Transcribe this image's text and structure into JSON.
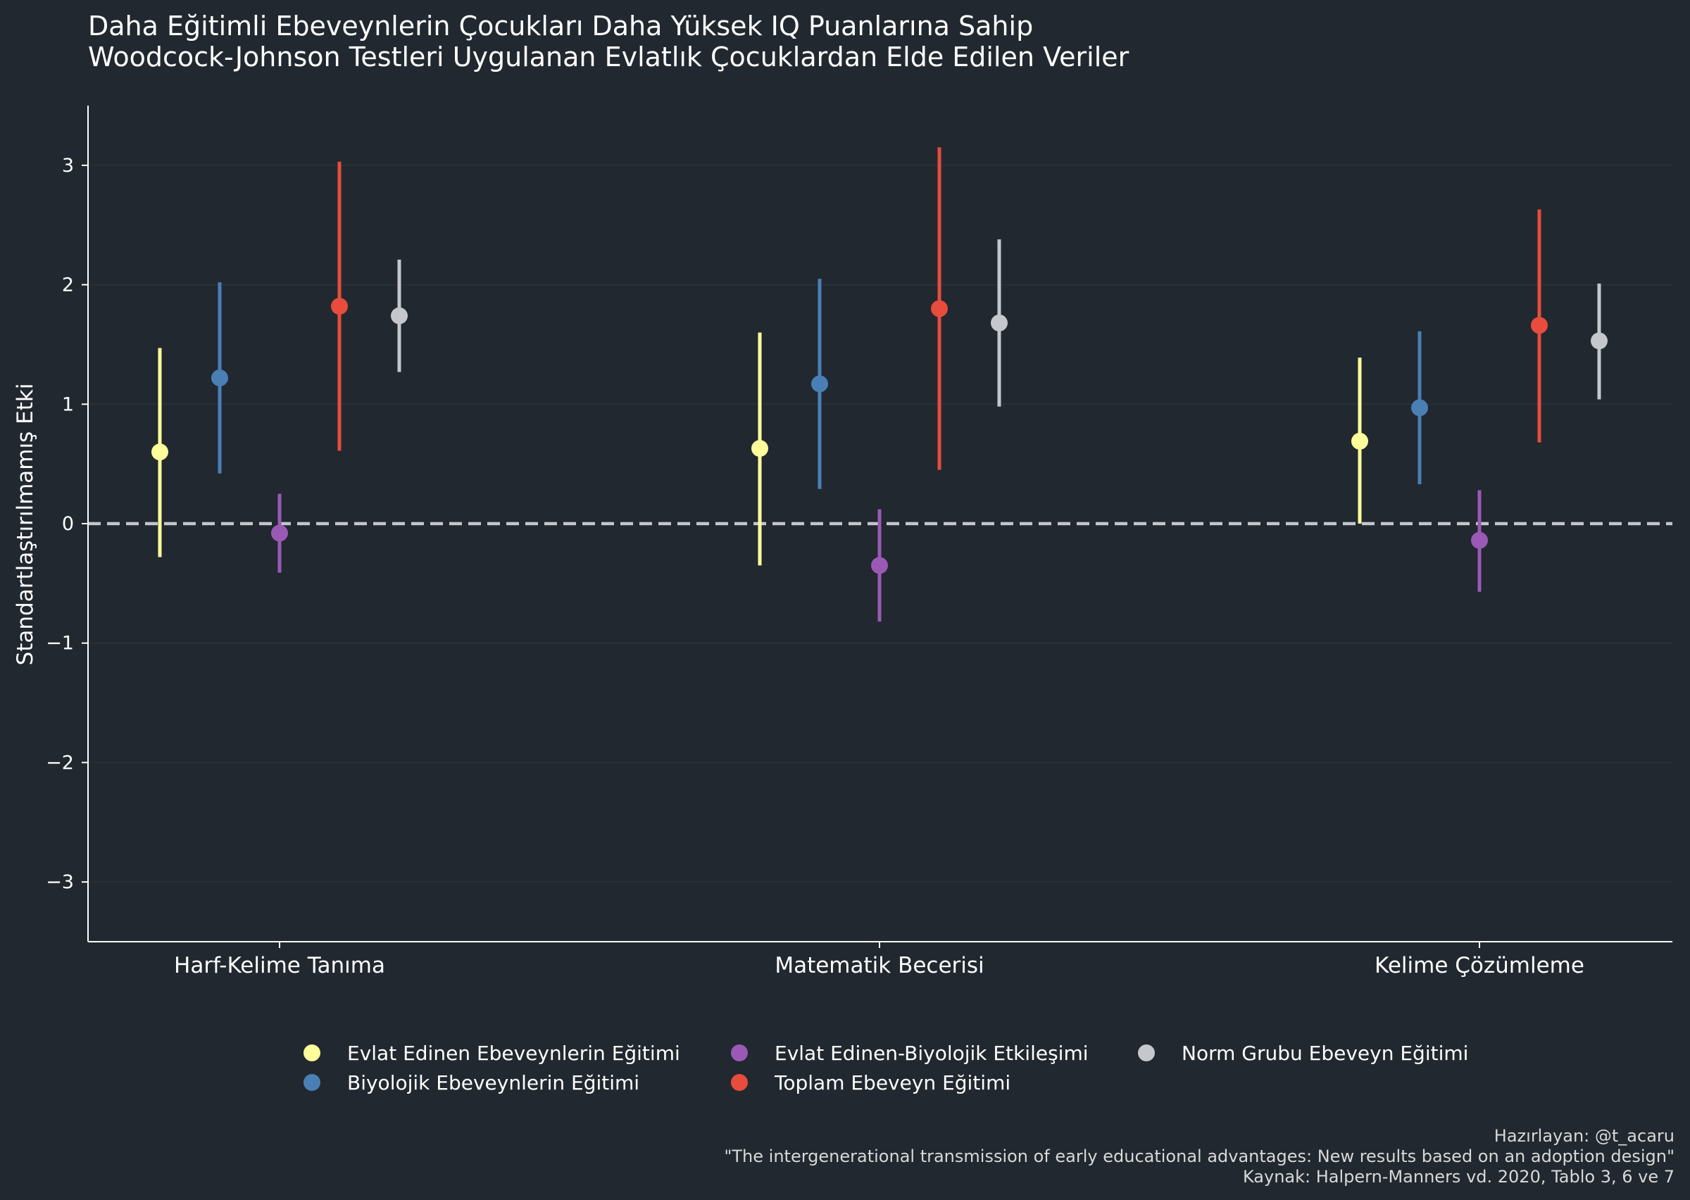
{
  "chart_data": {
    "type": "errorbar",
    "title": [
      "Daha Eğitimli Ebeveynlerin Çocukları Daha Yüksek IQ Puanlarına Sahip",
      "Woodcock-Johnson Testleri Uygulanan Evlatlık Çocuklardan Elde Edilen Veriler"
    ],
    "ylabel": "Standartlaştırılmamış Etki",
    "xlabel": "",
    "ylim": [
      -3.5,
      3.5
    ],
    "yticks": [
      -3,
      -2,
      -1,
      0,
      1,
      2,
      3
    ],
    "ytick_labels": [
      "−3",
      "−2",
      "−1",
      "0",
      "1",
      "2",
      "3"
    ],
    "reference_line": 0,
    "grid": true,
    "legend_position": "bottom-center",
    "categories": [
      "Harf-Kelime Tanıma",
      "Matematik Becerisi",
      "Kelime Çözümleme"
    ],
    "series": [
      {
        "name": "Evlat Edinen Ebeveynlerin Eğitimi",
        "color": "#fffe9a",
        "values": [
          0.6,
          0.63,
          0.69
        ],
        "lower": [
          -0.28,
          -0.35,
          0.0
        ],
        "upper": [
          1.47,
          1.6,
          1.39
        ]
      },
      {
        "name": "Biyolojik Ebeveynlerin Eğitimi",
        "color": "#4a7fb5",
        "values": [
          1.22,
          1.17,
          0.97
        ],
        "lower": [
          0.42,
          0.29,
          0.33
        ],
        "upper": [
          2.02,
          2.05,
          1.61
        ]
      },
      {
        "name": "Evlat Edinen-Biyolojik Etkileşimi",
        "color": "#9b59b6",
        "values": [
          -0.08,
          -0.35,
          -0.14
        ],
        "lower": [
          -0.41,
          -0.82,
          -0.57
        ],
        "upper": [
          0.25,
          0.12,
          0.28
        ]
      },
      {
        "name": "Toplam Ebeveyn Eğitimi",
        "color": "#e74c3c",
        "values": [
          1.82,
          1.8,
          1.66
        ],
        "lower": [
          0.61,
          0.45,
          0.68
        ],
        "upper": [
          3.03,
          3.15,
          2.63
        ]
      },
      {
        "name": "Norm Grubu Ebeveyn Eğitimi",
        "color": "#c4c7cc",
        "values": [
          1.74,
          1.68,
          1.53
        ],
        "lower": [
          1.27,
          0.98,
          1.04
        ],
        "upper": [
          2.21,
          2.38,
          2.01
        ]
      }
    ],
    "credits": [
      "Hazırlayan: @t_acaru",
      "\"The intergenerational transmission of early educational advantages: New results based on an adoption design\"",
      "Kaynak: Halpern-Manners vd. 2020, Tablo 3, 6 ve 7"
    ]
  },
  "colors": {
    "background": "#212830",
    "axis": "#ffffff",
    "grid": "#2a323b",
    "reference_line": "#c4c7cc"
  }
}
